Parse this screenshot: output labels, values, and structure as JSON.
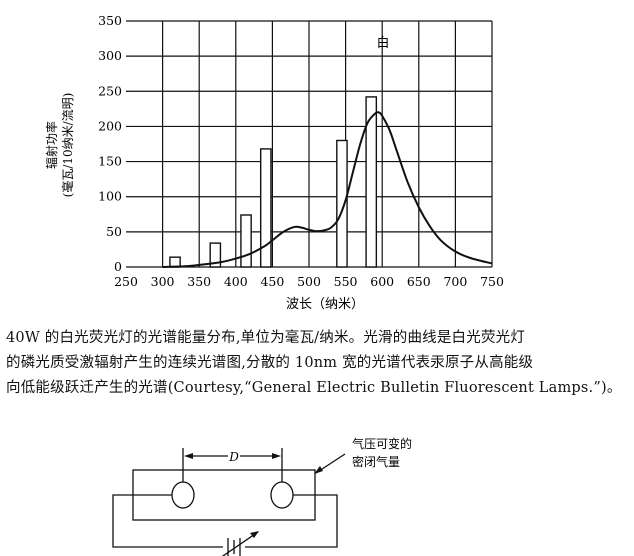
{
  "chart_data": {
    "type": "line",
    "annotation": "白",
    "xlabel": "波长（纳米）",
    "ylabel": [
      "辐射功率",
      "(毫瓦/10纳米/流明)"
    ],
    "xlim": [
      250,
      750
    ],
    "ylim": [
      0,
      350
    ],
    "xticks": [
      250,
      300,
      350,
      400,
      450,
      500,
      550,
      600,
      650,
      700,
      750
    ],
    "yticks": [
      0,
      50,
      100,
      150,
      200,
      250,
      300,
      350
    ],
    "grid": true,
    "continuous_curve": {
      "x": [
        300,
        330,
        350,
        380,
        400,
        420,
        440,
        450,
        465,
        480,
        490,
        500,
        510,
        520,
        530,
        540,
        550,
        560,
        570,
        580,
        590,
        595,
        600,
        610,
        620,
        635,
        650,
        665,
        680,
        700,
        720,
        750
      ],
      "y": [
        0,
        1,
        3,
        7,
        12,
        19,
        30,
        38,
        50,
        57,
        56,
        53,
        51,
        52,
        56,
        68,
        95,
        135,
        175,
        205,
        218,
        220,
        215,
        195,
        165,
        120,
        85,
        58,
        38,
        22,
        13,
        5
      ]
    },
    "line_bars": {
      "x": [
        317,
        372,
        414,
        441,
        545,
        585
      ],
      "y": [
        14,
        34,
        74,
        168,
        180,
        242
      ]
    }
  },
  "caption": {
    "lines": [
      "40W 的白光荧光灯的光谱能量分布,单位为毫瓦/纳米。光滑的曲线是白光荧光灯",
      "的磷光质受激辐射产生的连续光谱图,分散的 10nm 宽的光谱代表汞原子从高能级",
      "向低能级跃迁产生的光谱(Courtesy,“General Electric Bulletin Fluorescent Lamps.”)。"
    ]
  },
  "diagram": {
    "distance_label": "D",
    "note_lines": [
      "气压可变的",
      "密闭气量"
    ]
  }
}
